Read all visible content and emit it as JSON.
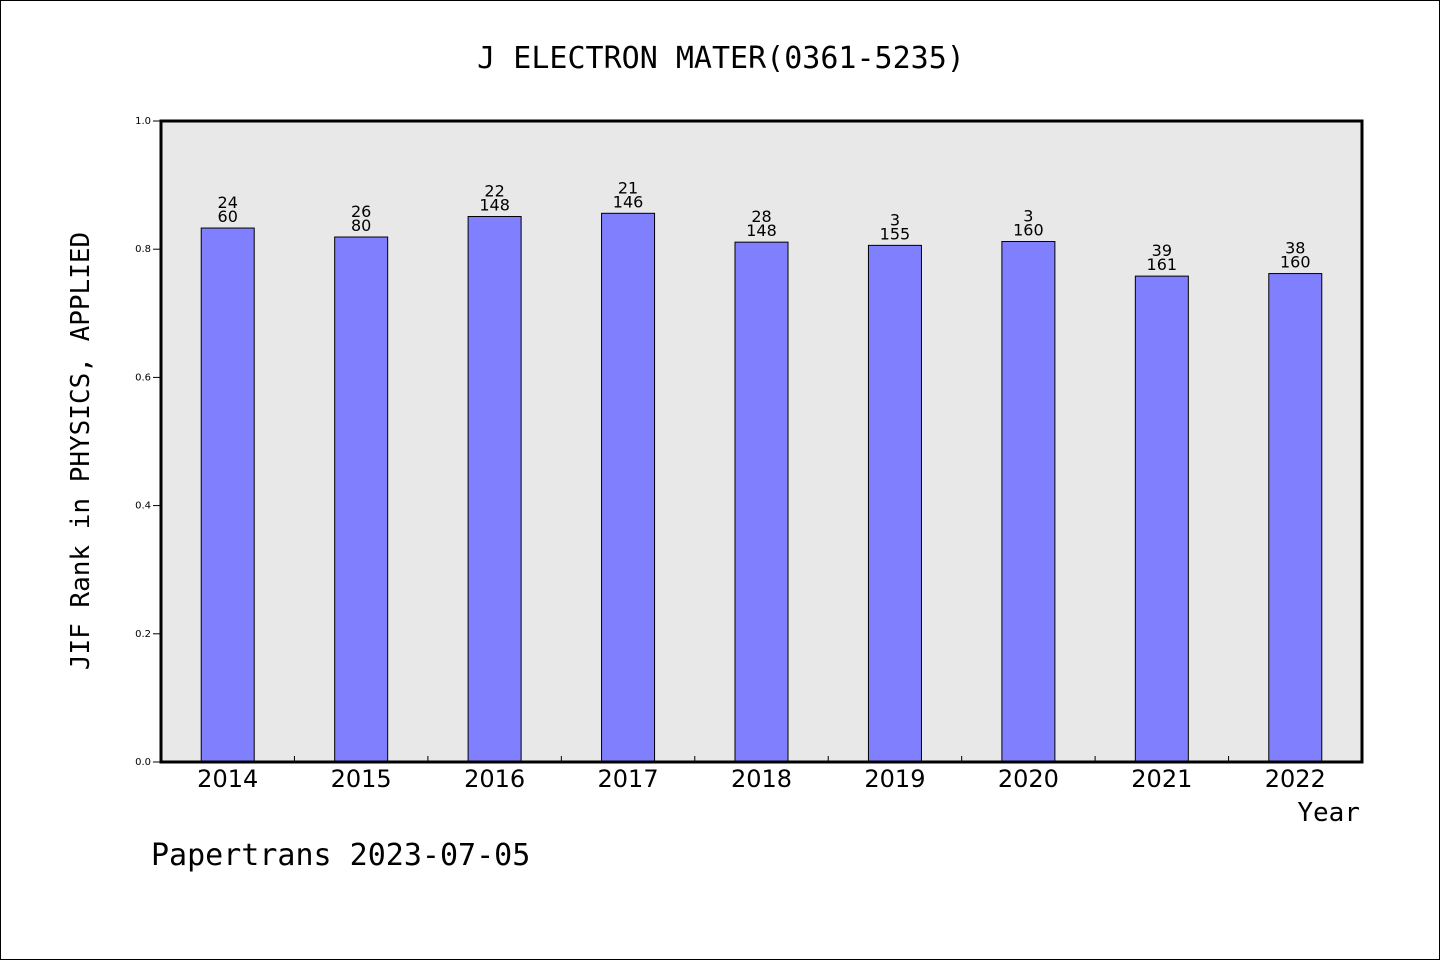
{
  "colors": {
    "bar": "#8080ff",
    "plot_bg": "#e8e8e8",
    "axis": "#000000"
  },
  "footer": "Papertrans 2023-07-05",
  "chart_data": {
    "type": "bar",
    "title": "J ELECTRON MATER(0361-5235)",
    "xlabel": "Year",
    "ylabel": "JIF Rank in PHYSICS, APPLIED",
    "ylim": [
      0,
      1
    ],
    "yticks": [
      "0.0",
      "0.2",
      "0.4",
      "0.6",
      "0.8",
      "1.0"
    ],
    "grid": false,
    "categories": [
      "2014",
      "2015",
      "2016",
      "2017",
      "2018",
      "2019",
      "2020",
      "2021",
      "2022"
    ],
    "values": [
      0.833,
      0.819,
      0.851,
      0.856,
      0.811,
      0.806,
      0.812,
      0.758,
      0.762
    ],
    "rank": [
      "24",
      "26",
      "22",
      "21",
      "28",
      "3",
      "3",
      "39",
      "38"
    ],
    "total": [
      "60",
      "80",
      "148",
      "146",
      "148",
      "155",
      "160",
      "161",
      "160"
    ]
  }
}
